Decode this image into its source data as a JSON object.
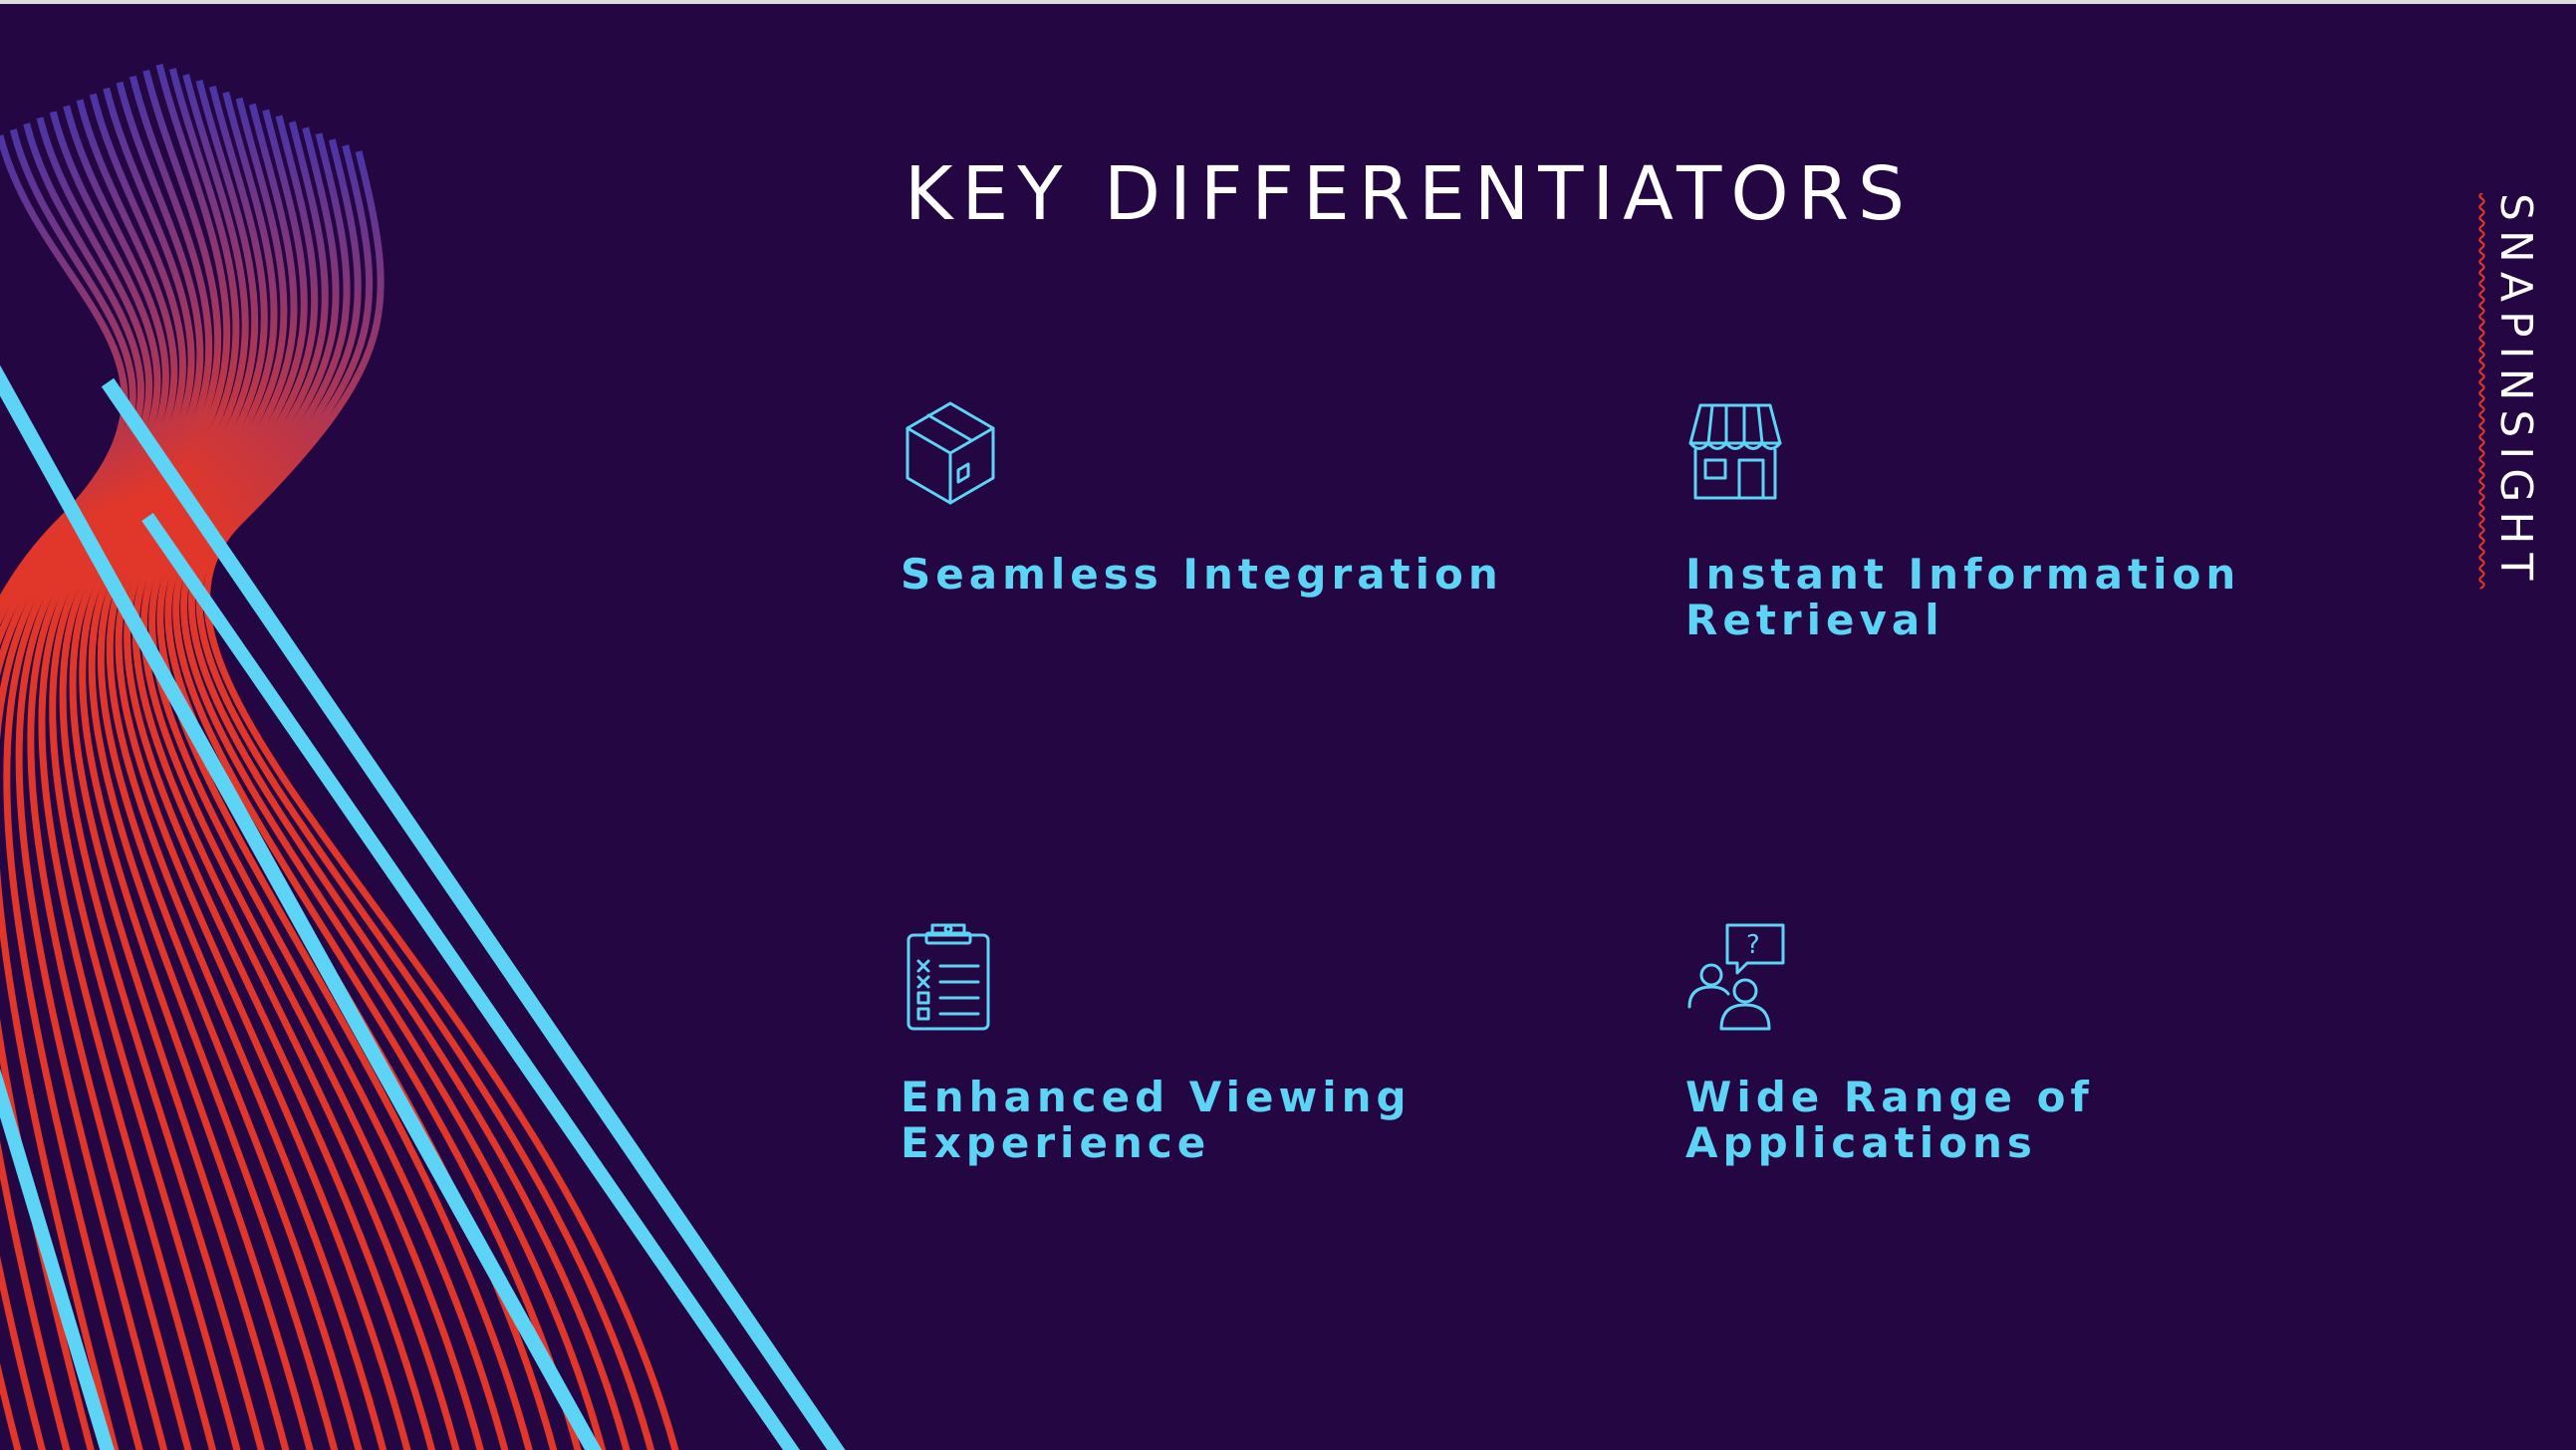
{
  "slide": {
    "title": "KEY DIFFERENTIATORS",
    "brand": "SNAPINSIGHT",
    "colors": {
      "background": "#240742",
      "accent": "#5dd3f5",
      "wave_red": "#e0372a",
      "wave_purple": "#4a35a6",
      "title_text": "#ffffff"
    }
  },
  "features": [
    {
      "icon": "package-box-icon",
      "label": "Seamless Integration"
    },
    {
      "icon": "storefront-icon",
      "label": "Instant Information Retrieval"
    },
    {
      "icon": "clipboard-checklist-icon",
      "label": "Enhanced Viewing Experience"
    },
    {
      "icon": "people-question-icon",
      "label": "Wide Range of Applications"
    }
  ]
}
